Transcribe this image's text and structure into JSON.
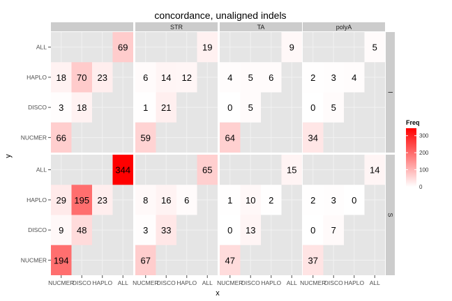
{
  "chart_data": {
    "type": "heatmap",
    "title": "concordance, unaligned indels",
    "xlabel": "x",
    "ylabel": "y",
    "x_categories": [
      "NUCMER",
      "DISCO",
      "HAPLO",
      "ALL"
    ],
    "y_categories": [
      "NUCMER",
      "DISCO",
      "HAPLO",
      "ALL"
    ],
    "facet_columns": [
      "",
      "STR",
      "TA",
      "polyA"
    ],
    "facet_rows": [
      "I",
      "S"
    ],
    "fill": {
      "name": "Freq",
      "low_color": "#ffffff",
      "high_color": "#ff0000",
      "limits": [
        0,
        344
      ],
      "breaks": [
        100,
        200,
        300
      ],
      "lowest_label": "0"
    },
    "panels": [
      {
        "row": "I",
        "col": "",
        "cells": [
          {
            "x": "ALL",
            "y": "ALL",
            "value": 69
          },
          {
            "x": "NUCMER",
            "y": "HAPLO",
            "value": 18
          },
          {
            "x": "DISCO",
            "y": "HAPLO",
            "value": 70
          },
          {
            "x": "HAPLO",
            "y": "HAPLO",
            "value": 23
          },
          {
            "x": "NUCMER",
            "y": "DISCO",
            "value": 3
          },
          {
            "x": "DISCO",
            "y": "DISCO",
            "value": 18
          },
          {
            "x": "NUCMER",
            "y": "NUCMER",
            "value": 66
          }
        ]
      },
      {
        "row": "I",
        "col": "STR",
        "cells": [
          {
            "x": "ALL",
            "y": "ALL",
            "value": 19
          },
          {
            "x": "NUCMER",
            "y": "HAPLO",
            "value": 6
          },
          {
            "x": "DISCO",
            "y": "HAPLO",
            "value": 14
          },
          {
            "x": "HAPLO",
            "y": "HAPLO",
            "value": 12
          },
          {
            "x": "NUCMER",
            "y": "DISCO",
            "value": 1
          },
          {
            "x": "DISCO",
            "y": "DISCO",
            "value": 21
          },
          {
            "x": "NUCMER",
            "y": "NUCMER",
            "value": 59
          }
        ]
      },
      {
        "row": "I",
        "col": "TA",
        "cells": [
          {
            "x": "ALL",
            "y": "ALL",
            "value": 9
          },
          {
            "x": "NUCMER",
            "y": "HAPLO",
            "value": 4
          },
          {
            "x": "DISCO",
            "y": "HAPLO",
            "value": 5
          },
          {
            "x": "HAPLO",
            "y": "HAPLO",
            "value": 6
          },
          {
            "x": "NUCMER",
            "y": "DISCO",
            "value": 0
          },
          {
            "x": "DISCO",
            "y": "DISCO",
            "value": 5
          },
          {
            "x": "NUCMER",
            "y": "NUCMER",
            "value": 64
          }
        ]
      },
      {
        "row": "I",
        "col": "polyA",
        "cells": [
          {
            "x": "ALL",
            "y": "ALL",
            "value": 5
          },
          {
            "x": "NUCMER",
            "y": "HAPLO",
            "value": 2
          },
          {
            "x": "DISCO",
            "y": "HAPLO",
            "value": 3
          },
          {
            "x": "HAPLO",
            "y": "HAPLO",
            "value": 4
          },
          {
            "x": "NUCMER",
            "y": "DISCO",
            "value": 0
          },
          {
            "x": "DISCO",
            "y": "DISCO",
            "value": 5
          },
          {
            "x": "NUCMER",
            "y": "NUCMER",
            "value": 34
          }
        ]
      },
      {
        "row": "S",
        "col": "",
        "cells": [
          {
            "x": "ALL",
            "y": "ALL",
            "value": 344
          },
          {
            "x": "NUCMER",
            "y": "HAPLO",
            "value": 29
          },
          {
            "x": "DISCO",
            "y": "HAPLO",
            "value": 195
          },
          {
            "x": "HAPLO",
            "y": "HAPLO",
            "value": 23
          },
          {
            "x": "NUCMER",
            "y": "DISCO",
            "value": 9
          },
          {
            "x": "DISCO",
            "y": "DISCO",
            "value": 48
          },
          {
            "x": "NUCMER",
            "y": "NUCMER",
            "value": 194
          }
        ]
      },
      {
        "row": "S",
        "col": "STR",
        "cells": [
          {
            "x": "ALL",
            "y": "ALL",
            "value": 65
          },
          {
            "x": "NUCMER",
            "y": "HAPLO",
            "value": 8
          },
          {
            "x": "DISCO",
            "y": "HAPLO",
            "value": 16
          },
          {
            "x": "HAPLO",
            "y": "HAPLO",
            "value": 6
          },
          {
            "x": "NUCMER",
            "y": "DISCO",
            "value": 3
          },
          {
            "x": "DISCO",
            "y": "DISCO",
            "value": 33
          },
          {
            "x": "NUCMER",
            "y": "NUCMER",
            "value": 67
          }
        ]
      },
      {
        "row": "S",
        "col": "TA",
        "cells": [
          {
            "x": "ALL",
            "y": "ALL",
            "value": 15
          },
          {
            "x": "NUCMER",
            "y": "HAPLO",
            "value": 1
          },
          {
            "x": "DISCO",
            "y": "HAPLO",
            "value": 10
          },
          {
            "x": "HAPLO",
            "y": "HAPLO",
            "value": 2
          },
          {
            "x": "NUCMER",
            "y": "DISCO",
            "value": 0
          },
          {
            "x": "DISCO",
            "y": "DISCO",
            "value": 13
          },
          {
            "x": "NUCMER",
            "y": "NUCMER",
            "value": 47
          }
        ]
      },
      {
        "row": "S",
        "col": "polyA",
        "cells": [
          {
            "x": "ALL",
            "y": "ALL",
            "value": 14
          },
          {
            "x": "NUCMER",
            "y": "HAPLO",
            "value": 2
          },
          {
            "x": "DISCO",
            "y": "HAPLO",
            "value": 3
          },
          {
            "x": "HAPLO",
            "y": "HAPLO",
            "value": 0
          },
          {
            "x": "NUCMER",
            "y": "DISCO",
            "value": 0
          },
          {
            "x": "DISCO",
            "y": "DISCO",
            "value": 7
          },
          {
            "x": "NUCMER",
            "y": "NUCMER",
            "value": 37
          }
        ]
      }
    ],
    "grid": true,
    "legend_position": "right",
    "colors": {
      "panel_background": "#e5e5e5",
      "gridline": "#f2f2f2",
      "strip_background": "#cccccc"
    }
  }
}
